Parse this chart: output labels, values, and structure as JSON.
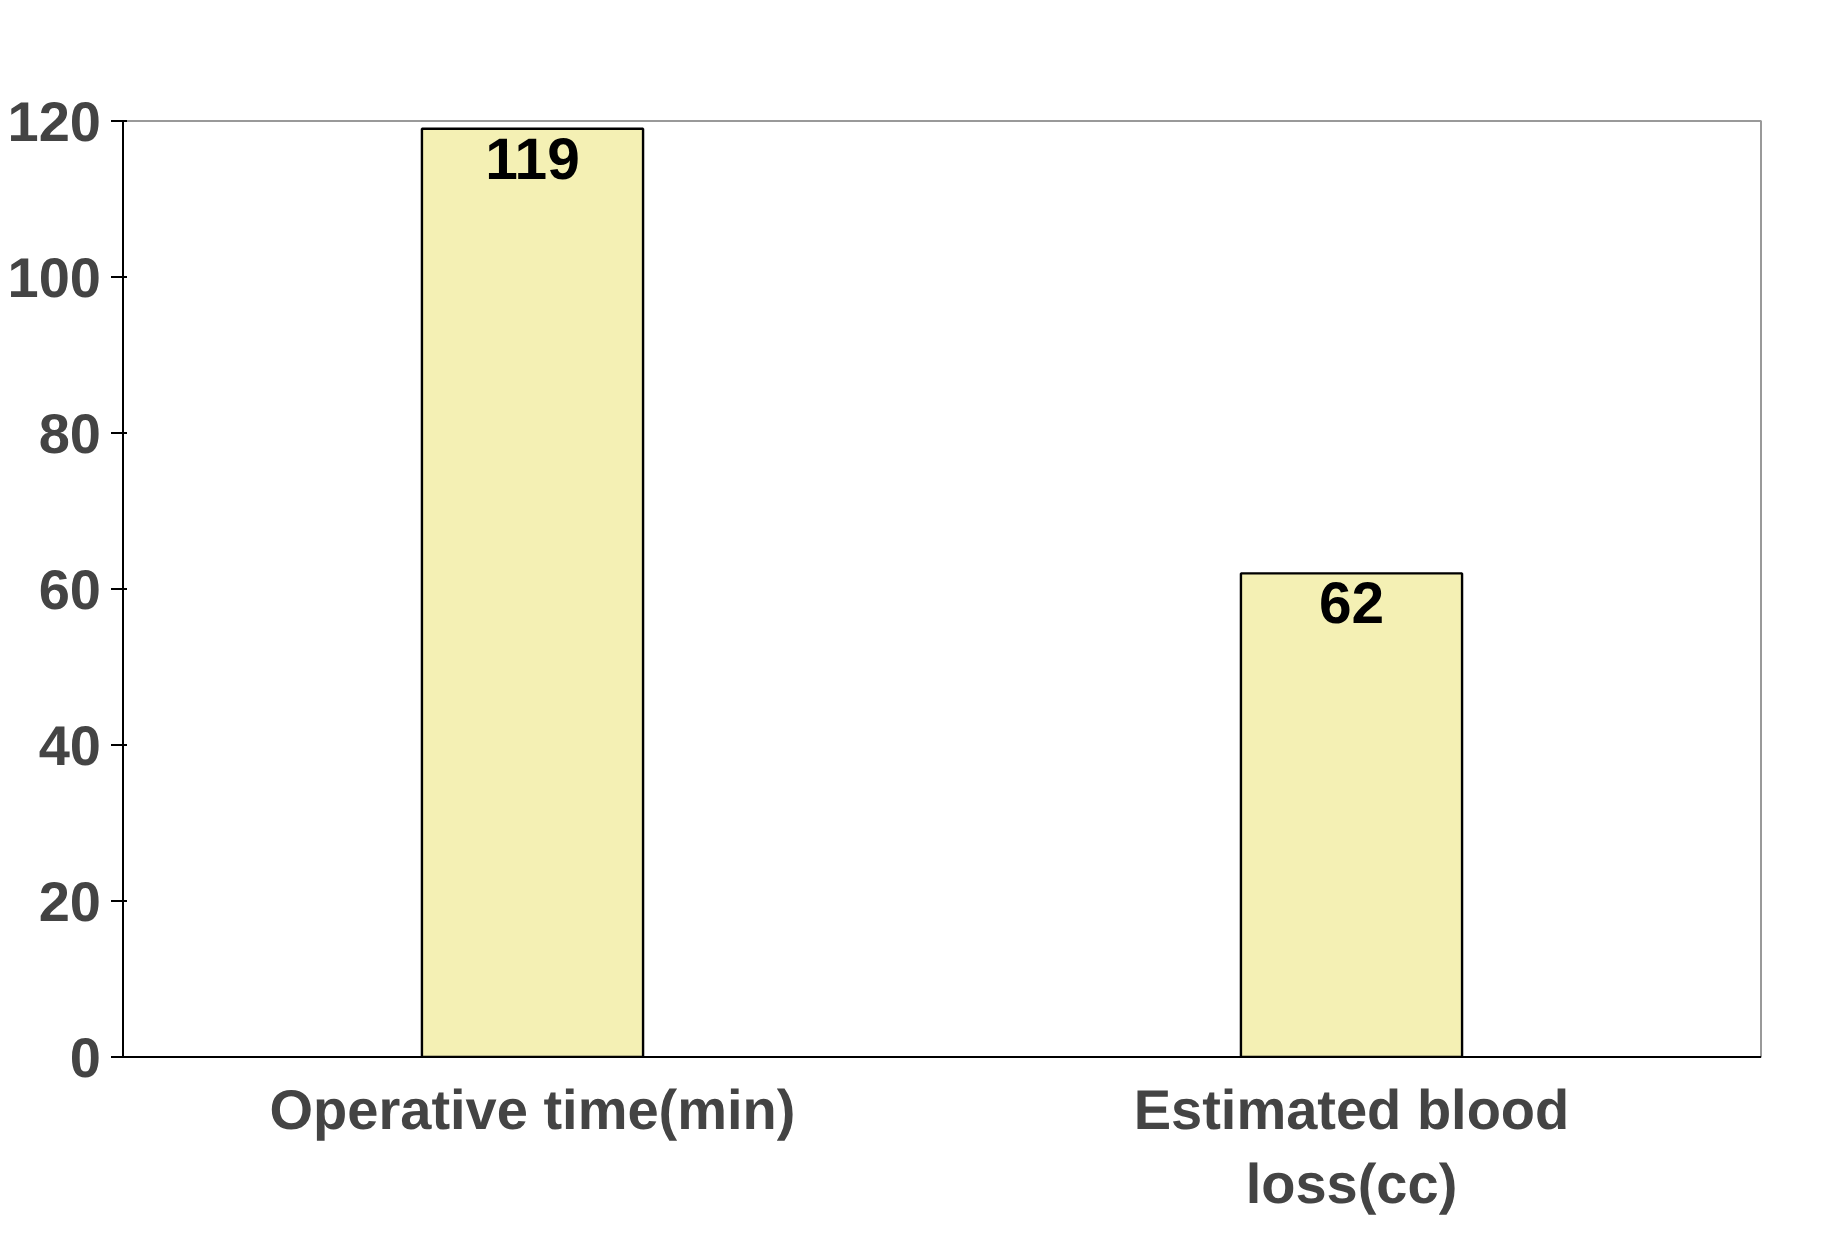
{
  "chart_data": {
    "type": "bar",
    "categories": [
      "Operative time(min)",
      "Estimated blood loss(cc)"
    ],
    "values": [
      119,
      62
    ],
    "color": "#f4f0b4",
    "ylim": [
      0,
      120
    ],
    "yticks": [
      0,
      20,
      40,
      60,
      80,
      100,
      120
    ],
    "data_labels": true,
    "grid": false
  }
}
